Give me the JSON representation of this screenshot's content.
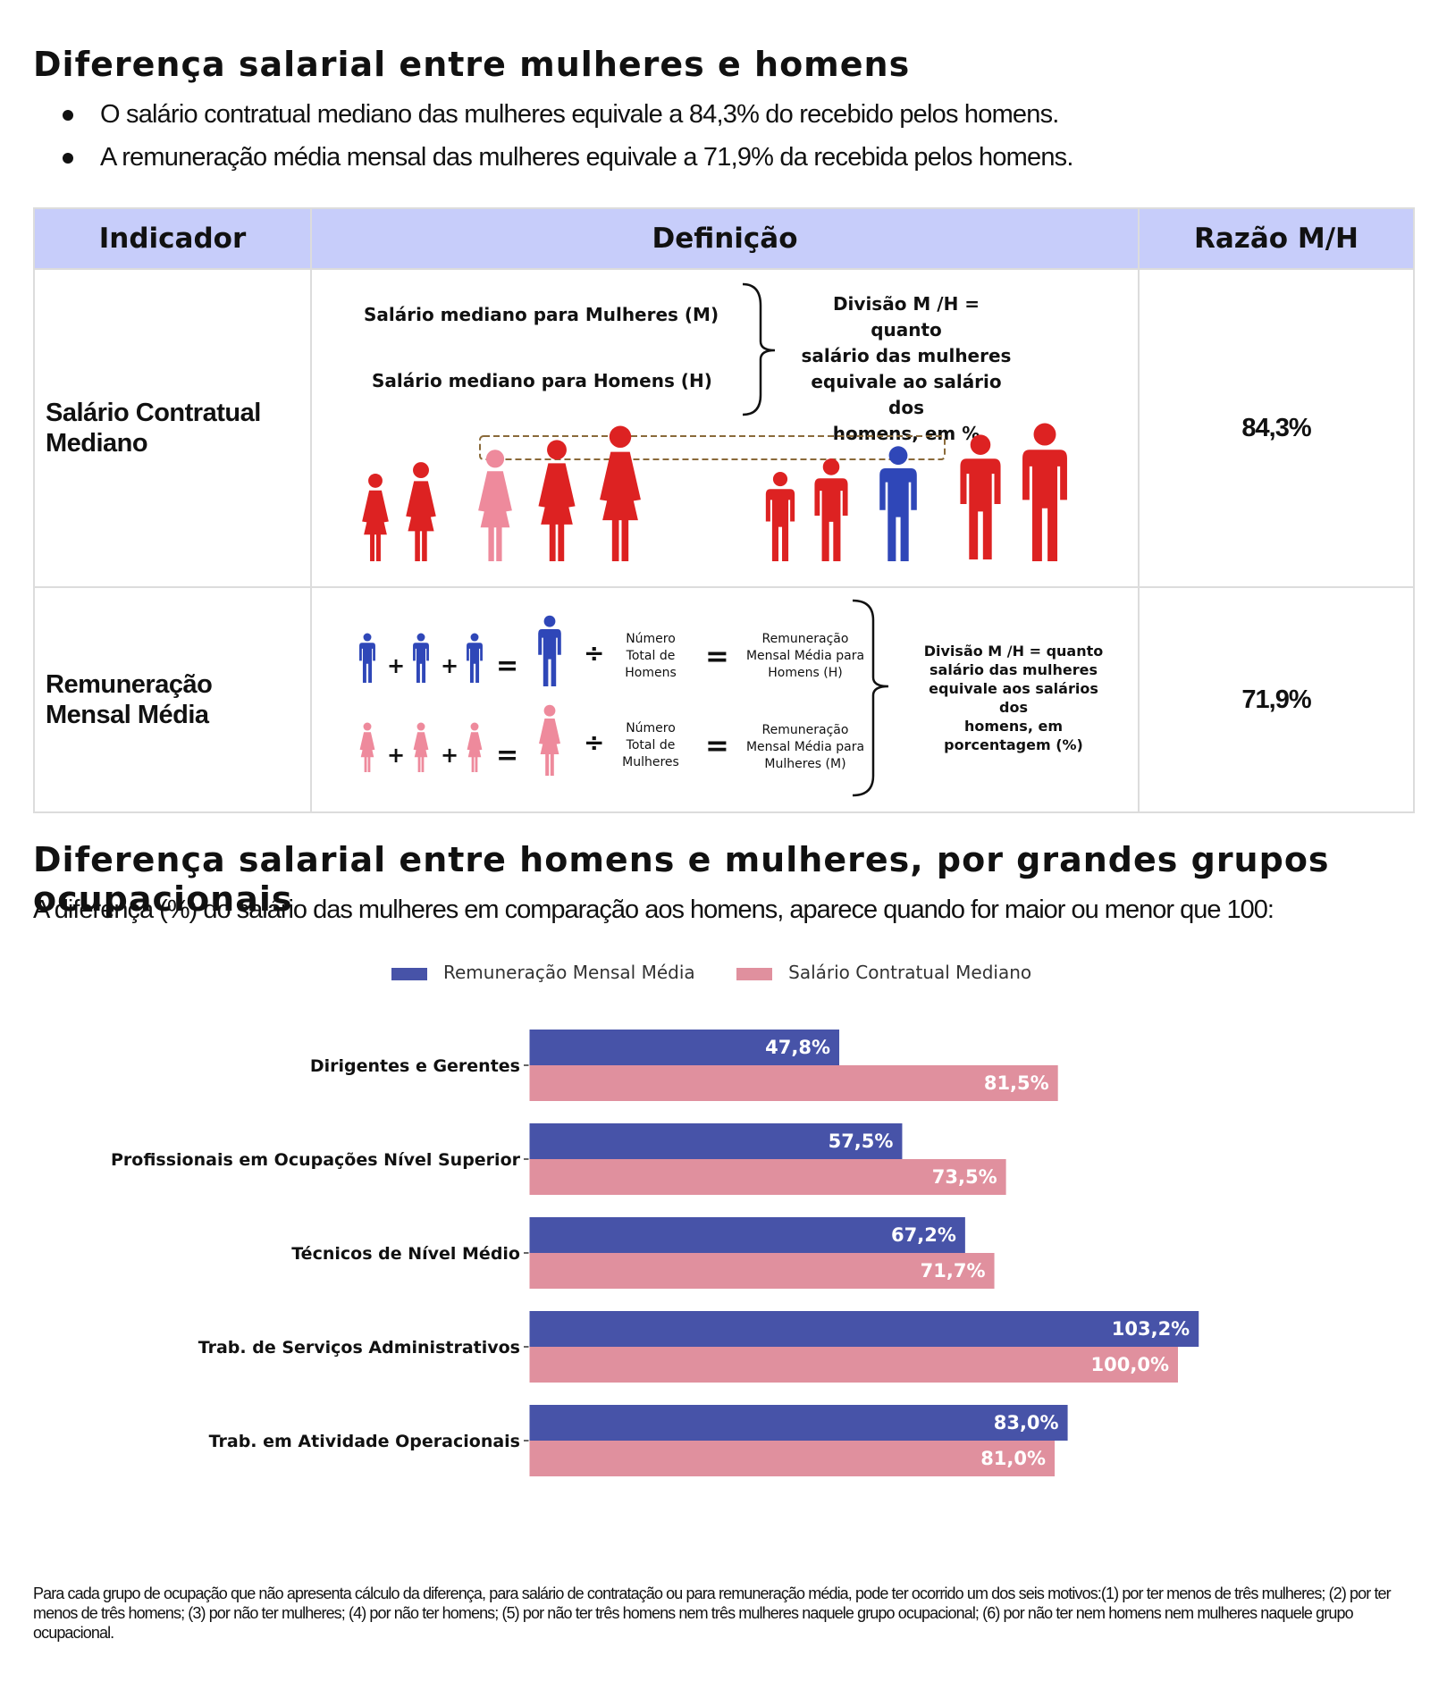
{
  "section1": {
    "title": "Diferença salarial entre mulheres e homens",
    "bullets": [
      "O salário contratual mediano das mulheres equivale a 84,3% do recebido pelos homens.",
      "A remuneração média mensal das mulheres equivale a 71,9% da recebida pelos homens."
    ]
  },
  "table": {
    "headers": [
      "Indicador",
      "Definição",
      "Razão M/H"
    ],
    "row1": {
      "indicator_line1": "Salário Contratual",
      "indicator_line2": "Mediano",
      "median_women": "Salário mediano para Mulheres (M)",
      "median_men": "Salário mediano para Homens (H)",
      "division_lines": [
        "Divisão M /H = quanto",
        "salário das mulheres",
        "equivale ao salário dos",
        "homens, em %"
      ],
      "ratio": "84,3%"
    },
    "row2": {
      "indicator_line1": "Remuneração",
      "indicator_line2": "Mensal Média",
      "men_count_lines": [
        "Número",
        "Total de",
        "Homens"
      ],
      "men_avg_lines": [
        "Remuneração",
        "Mensal Média para",
        "Homens (H)"
      ],
      "women_count_lines": [
        "Número",
        "Total de",
        "Mulheres"
      ],
      "women_avg_lines": [
        "Remuneração",
        "Mensal Média para",
        "Mulheres (M)"
      ],
      "division_lines": [
        "Divisão M /H = quanto",
        "salário das mulheres",
        "equivale aos salários",
        "dos",
        "homens, em",
        "porcentagem (%)"
      ],
      "ratio": "71,9%"
    }
  },
  "section2": {
    "title": "Diferença salarial entre homens e mulheres, por grandes grupos ocupacionais",
    "subtitle": "A diferença (%) do salário das mulheres em comparação aos homens, aparece quando for maior ou menor que 100:"
  },
  "colors": {
    "blue_bar": "#4753a8",
    "pink_bar": "#e0909e",
    "figure_red": "#dd2222",
    "figure_pink": "#ee8a9c",
    "figure_blue": "#2f47b8",
    "header_bg": "#c7cdfa"
  },
  "chart_data": {
    "type": "bar",
    "orientation": "horizontal",
    "categories": [
      "Dirigentes e Gerentes",
      "Profissionais em Ocupações Nível Superior",
      "Técnicos de Nível Médio",
      "Trab. de Serviços Administrativos",
      "Trab. em Atividade Operacionais"
    ],
    "series": [
      {
        "name": "Remuneração Mensal Média",
        "values": [
          47.8,
          57.5,
          67.2,
          103.2,
          83.0
        ],
        "labels": [
          "47,8%",
          "57,5%",
          "67,2%",
          "103,2%",
          "83,0%"
        ],
        "color": "#4753a8"
      },
      {
        "name": "Salário Contratual Mediano",
        "values": [
          81.5,
          73.5,
          71.7,
          100.0,
          81.0
        ],
        "labels": [
          "81,5%",
          "73,5%",
          "71,7%",
          "100,0%",
          "81,0%"
        ],
        "color": "#e0909e"
      }
    ],
    "xlim": [
      0,
      108
    ],
    "legend": "top-center",
    "grid": false
  },
  "footnote": "Para cada grupo de ocupação que não apresenta cálculo da diferença, para salário de contratação ou para remuneração média, pode ter ocorrido um dos seis motivos:(1) por ter menos de três mulheres; (2) por ter menos de três homens; (3) por não ter mulheres; (4) por não ter homens; (5) por não ter três homens nem três mulheres naquele grupo ocupacional; (6) por não ter nem homens nem mulheres naquele grupo ocupacional."
}
